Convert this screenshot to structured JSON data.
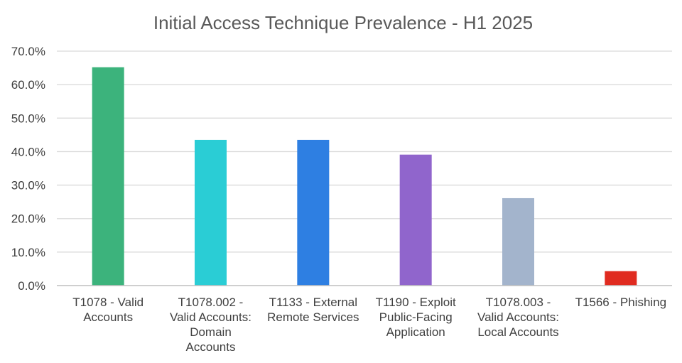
{
  "chart_data": {
    "type": "bar",
    "title": "Initial Access Technique Prevalence - H1 2025",
    "xlabel": "",
    "ylabel": "",
    "ylim": [
      0,
      70
    ],
    "yticks": [
      "0.0%",
      "10.0%",
      "20.0%",
      "30.0%",
      "40.0%",
      "50.0%",
      "60.0%",
      "70.0%"
    ],
    "grid": true,
    "legend": "none",
    "categories": [
      [
        "T1078 - Valid",
        "Accounts"
      ],
      [
        "T1078.002 -",
        "Valid Accounts:",
        "Domain",
        "Accounts"
      ],
      [
        "T1133 - External",
        "Remote Services"
      ],
      [
        "T1190 - Exploit",
        "Public-Facing",
        "Application"
      ],
      [
        "T1078.003 -",
        "Valid Accounts:",
        "Local Accounts"
      ],
      [
        "T1566 - Phishing"
      ]
    ],
    "values": [
      65.2,
      43.5,
      43.5,
      39.1,
      26.1,
      4.3
    ],
    "colors": [
      "#3cb37c",
      "#2acdd5",
      "#2e7fe2",
      "#9065cc",
      "#a3b4cc",
      "#e02b20"
    ]
  }
}
